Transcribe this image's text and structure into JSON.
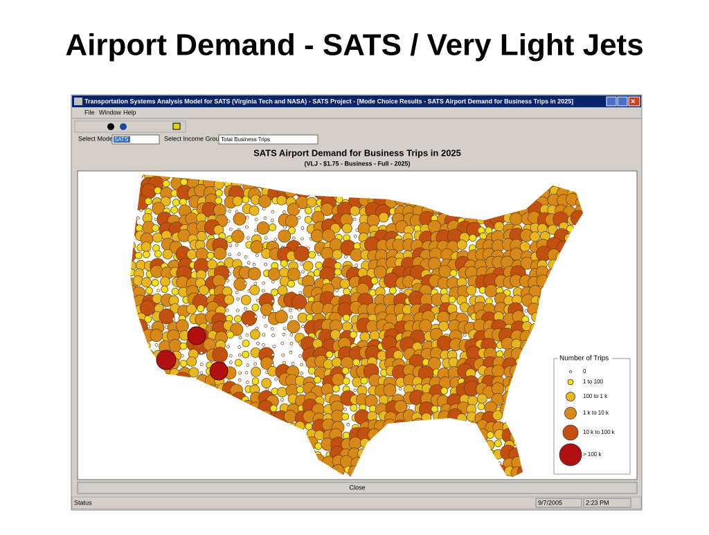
{
  "slide_title": "Airport Demand - SATS / Very Light Jets",
  "window": {
    "title": "Transportation Systems Analysis Model for SATS (Virginia Tech and NASA) - SATS Project - [Mode Choice Results - SATS Airport Demand for Business Trips in 2025]",
    "menu": [
      "File",
      "Window",
      "Help"
    ],
    "mode_label": "Select Mode:",
    "mode_value": "SATS",
    "income_label": "Select Income Group:",
    "income_value": "Total Business Trips",
    "map_title": "SATS Airport Demand for Business Trips in 2025",
    "map_subtitle": "(VLJ - $1.75 - Business - Full - 2025)",
    "legend": {
      "title": "Number of Trips",
      "items": [
        "0",
        "1 to 100",
        "100 to 1 k",
        "1 k to 10 k",
        "10 k to 100 k",
        "> 100 k"
      ]
    },
    "close_button": "Close",
    "status": [
      "Status",
      "9/7/2005",
      "2:23 PM"
    ]
  }
}
